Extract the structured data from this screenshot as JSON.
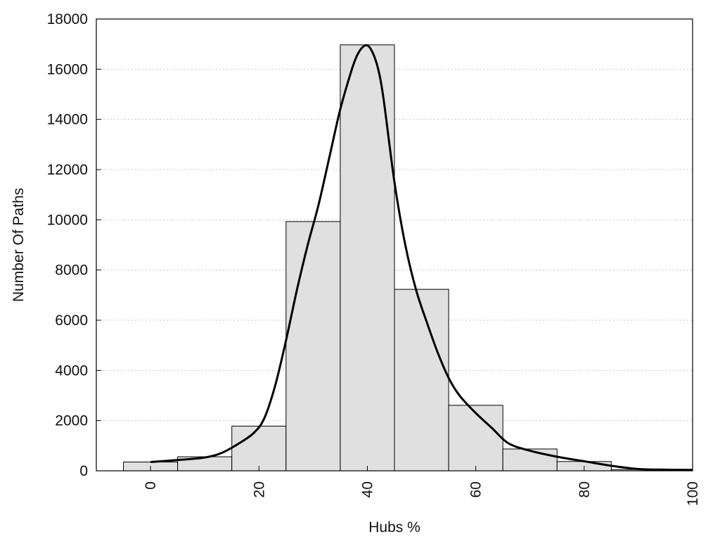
{
  "chart_data": {
    "type": "bar",
    "title": "",
    "xlabel": "Hubs %",
    "ylabel": "Number Of Paths",
    "xlim": [
      -10,
      100
    ],
    "ylim": [
      0,
      18000
    ],
    "bin_width": 10,
    "categories": [
      "0",
      "10",
      "20",
      "30",
      "40",
      "50",
      "60",
      "70",
      "80",
      "90"
    ],
    "x": [
      0,
      10,
      20,
      30,
      40,
      50,
      60,
      70,
      80,
      90
    ],
    "values": [
      350,
      560,
      1780,
      9930,
      16970,
      7230,
      2610,
      870,
      370,
      50
    ],
    "curve": {
      "x": [
        0,
        5,
        10,
        13,
        16,
        19,
        21,
        23,
        25,
        27,
        29,
        31,
        33,
        35,
        37,
        38,
        39,
        40,
        41,
        42,
        43,
        45,
        47,
        49,
        51,
        53,
        55,
        57,
        60,
        63,
        66,
        70,
        75,
        80,
        85,
        90,
        95,
        100
      ],
      "values": [
        350,
        430,
        530,
        700,
        1050,
        1500,
        2100,
        3400,
        5200,
        7200,
        9000,
        10600,
        12500,
        14400,
        15900,
        16500,
        16850,
        16950,
        16650,
        16000,
        14800,
        11500,
        9000,
        7200,
        5900,
        4700,
        3700,
        3000,
        2300,
        1700,
        1100,
        800,
        560,
        380,
        200,
        70,
        45,
        35
      ]
    },
    "x_ticks": [
      "0",
      "20",
      "40",
      "60",
      "80",
      "100"
    ],
    "y_ticks": [
      "0",
      "2000",
      "4000",
      "6000",
      "8000",
      "10000",
      "12000",
      "14000",
      "16000",
      "18000"
    ],
    "grid": "horizontal dotted",
    "bar_color": "#e0e0e0",
    "bar_edge_color": "#000000",
    "curve_color": "#000000",
    "legend": "none"
  }
}
